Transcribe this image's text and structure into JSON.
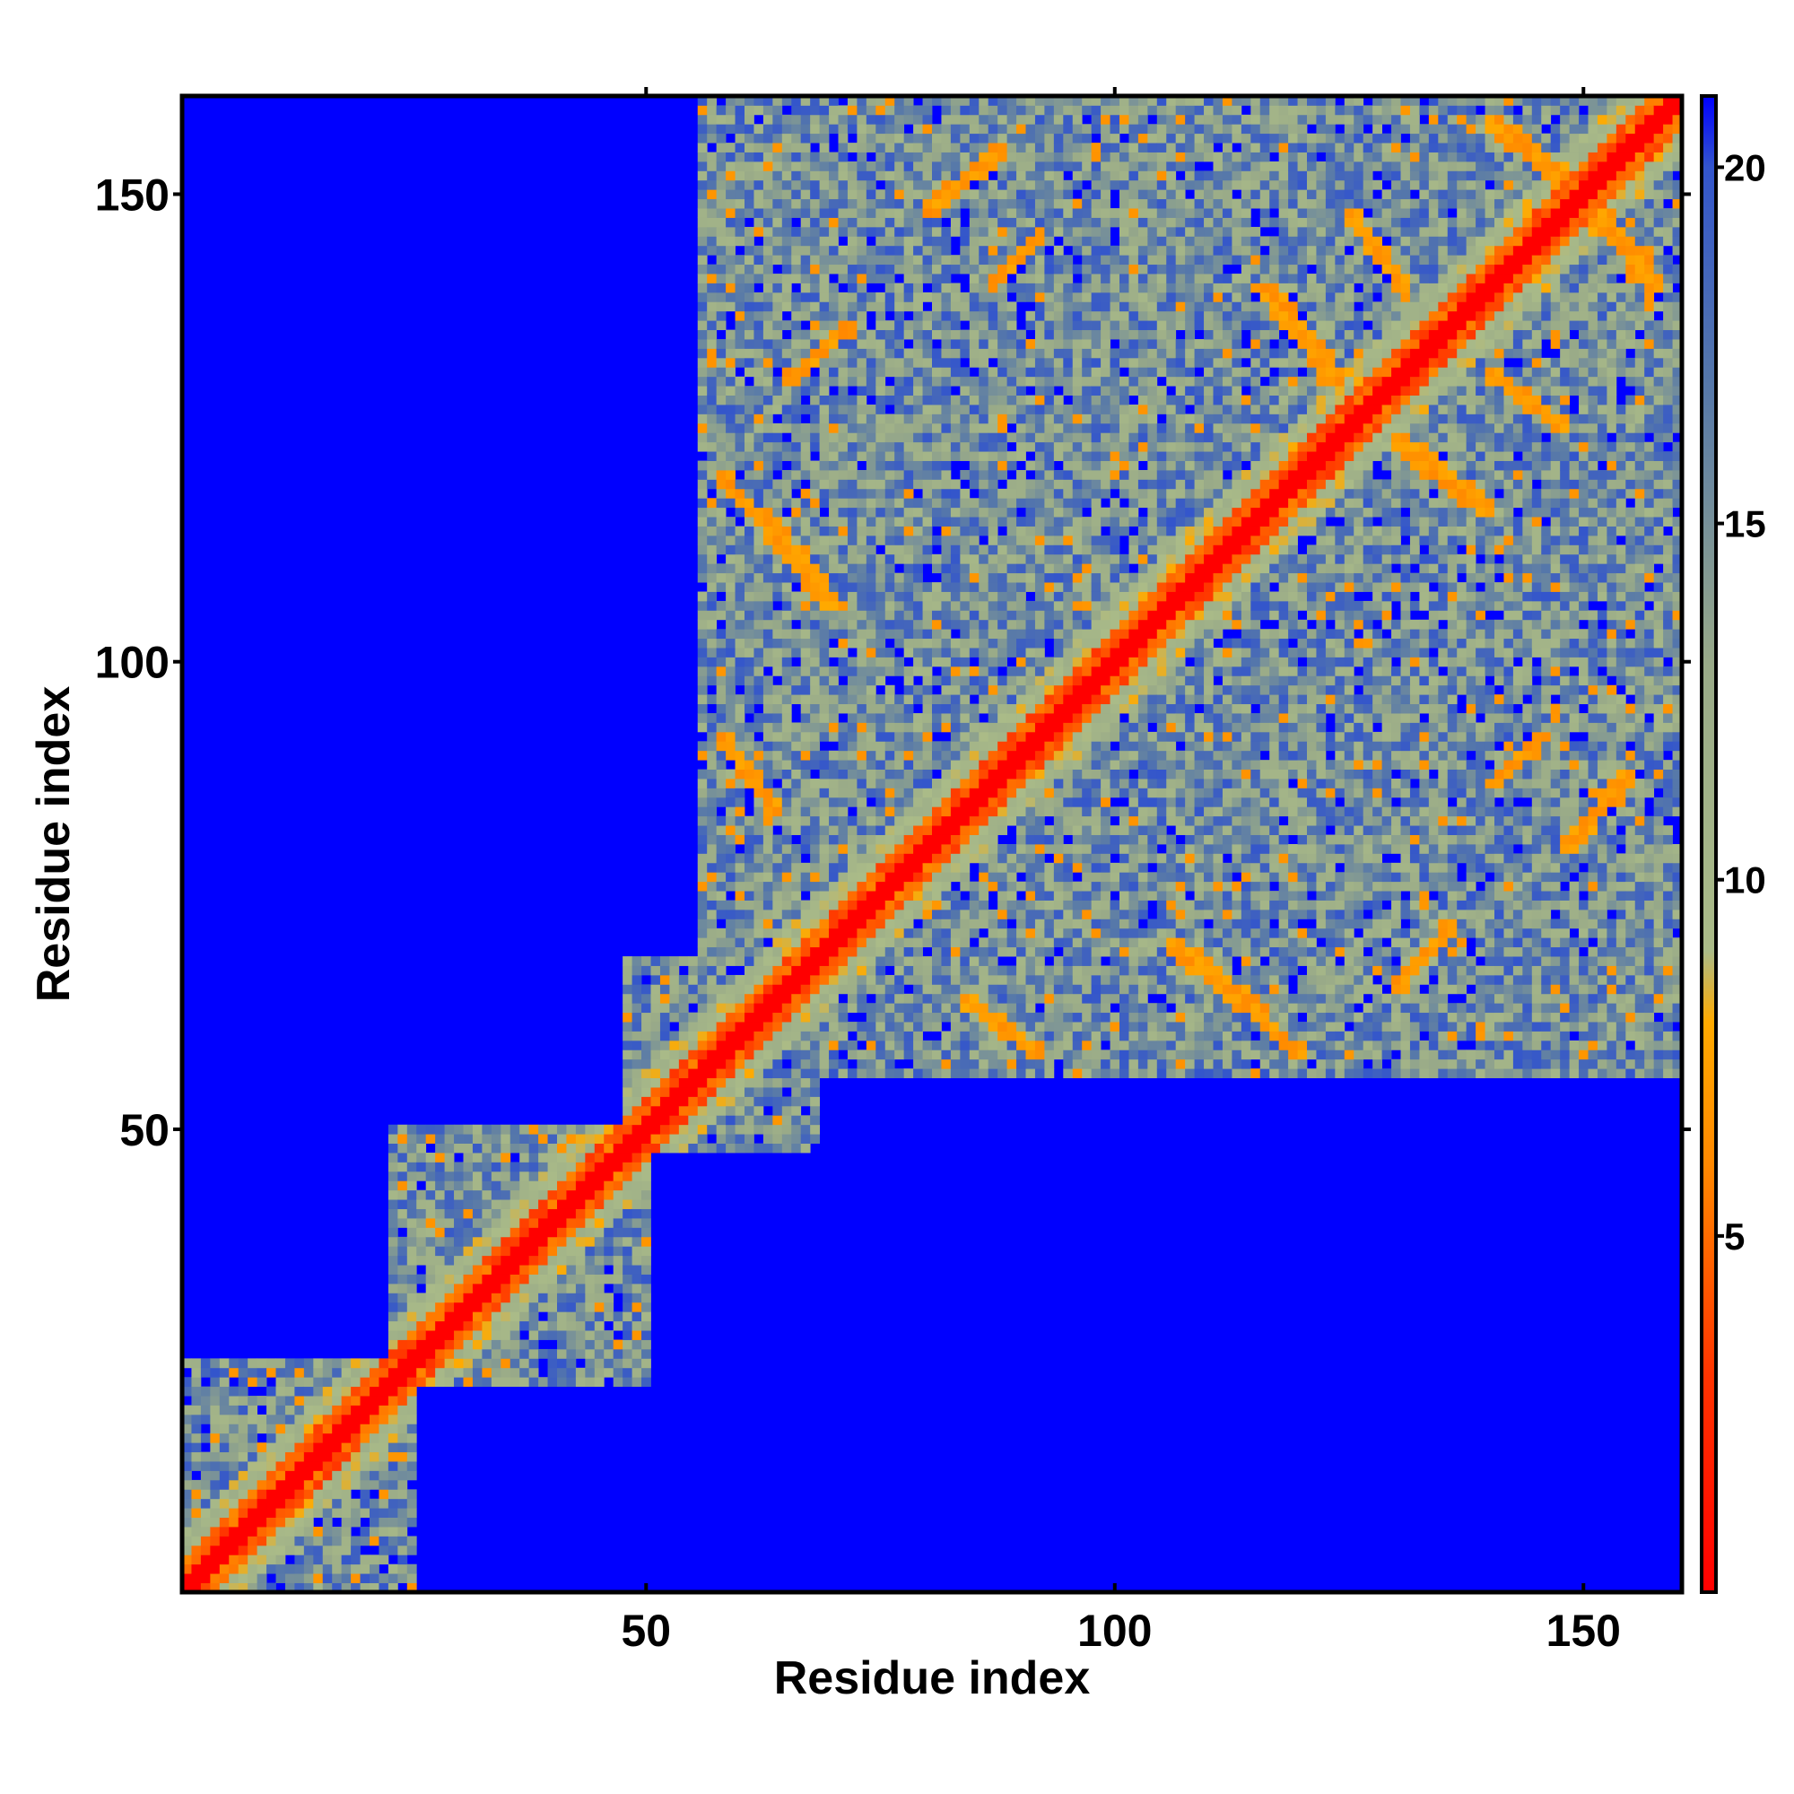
{
  "chart_data": {
    "type": "heatmap",
    "title": "",
    "xlabel": "Residue index",
    "ylabel": "Residue index",
    "n_residues": 160,
    "x_ticks": [
      50,
      100,
      150
    ],
    "y_ticks": [
      50,
      100,
      150
    ],
    "x_tick_labels": [
      "50",
      "100",
      "150"
    ],
    "y_tick_labels": [
      "50",
      "100",
      "150"
    ],
    "xlim": [
      1,
      160
    ],
    "ylim": [
      1,
      160
    ],
    "colorbar": {
      "range": [
        0,
        21
      ],
      "ticks": [
        5,
        10,
        15,
        20
      ],
      "tick_labels": [
        "5",
        "10",
        "15",
        "20"
      ],
      "stops": [
        {
          "value": 0,
          "color": "#ff0000"
        },
        {
          "value": 3,
          "color": "#ff3300"
        },
        {
          "value": 6,
          "color": "#ff8800"
        },
        {
          "value": 8,
          "color": "#ffaa00"
        },
        {
          "value": 9,
          "color": "#aabb88"
        },
        {
          "value": 13,
          "color": "#99aa88"
        },
        {
          "value": 17,
          "color": "#5577aa"
        },
        {
          "value": 20,
          "color": "#3355cc"
        },
        {
          "value": 21,
          "color": "#0000ff"
        }
      ]
    },
    "background_color": "#0000ff",
    "diagonal_color": "#ff0000",
    "contact_color": "#ff8800",
    "domains": [
      {
        "from": 1,
        "to": 25
      },
      {
        "from": 23,
        "to": 50
      },
      {
        "from": 48,
        "to": 68
      },
      {
        "from": 56,
        "to": 160
      }
    ],
    "contact_bands": [
      {
        "from_a": 58,
        "to_a": 64,
        "from_b": 113,
        "to_b": 120,
        "orientation": "anti"
      },
      {
        "from_a": 58,
        "to_a": 64,
        "from_b": 84,
        "to_b": 92,
        "orientation": "anti"
      },
      {
        "from_a": 62,
        "to_a": 70,
        "from_b": 106,
        "to_b": 116,
        "orientation": "anti"
      },
      {
        "from_a": 116,
        "to_a": 124,
        "from_b": 130,
        "to_b": 140,
        "orientation": "anti"
      },
      {
        "from_a": 125,
        "to_a": 131,
        "from_b": 140,
        "to_b": 148,
        "orientation": "anti"
      },
      {
        "from_a": 65,
        "to_a": 72,
        "from_b": 130,
        "to_b": 136,
        "orientation": "parallel"
      },
      {
        "from_a": 80,
        "to_a": 88,
        "from_b": 148,
        "to_b": 155,
        "orientation": "parallel"
      },
      {
        "from_a": 87,
        "to_a": 92,
        "from_b": 140,
        "to_b": 146,
        "orientation": "parallel"
      },
      {
        "from_a": 140,
        "to_a": 150,
        "from_b": 150,
        "to_b": 158,
        "orientation": "anti"
      }
    ]
  }
}
